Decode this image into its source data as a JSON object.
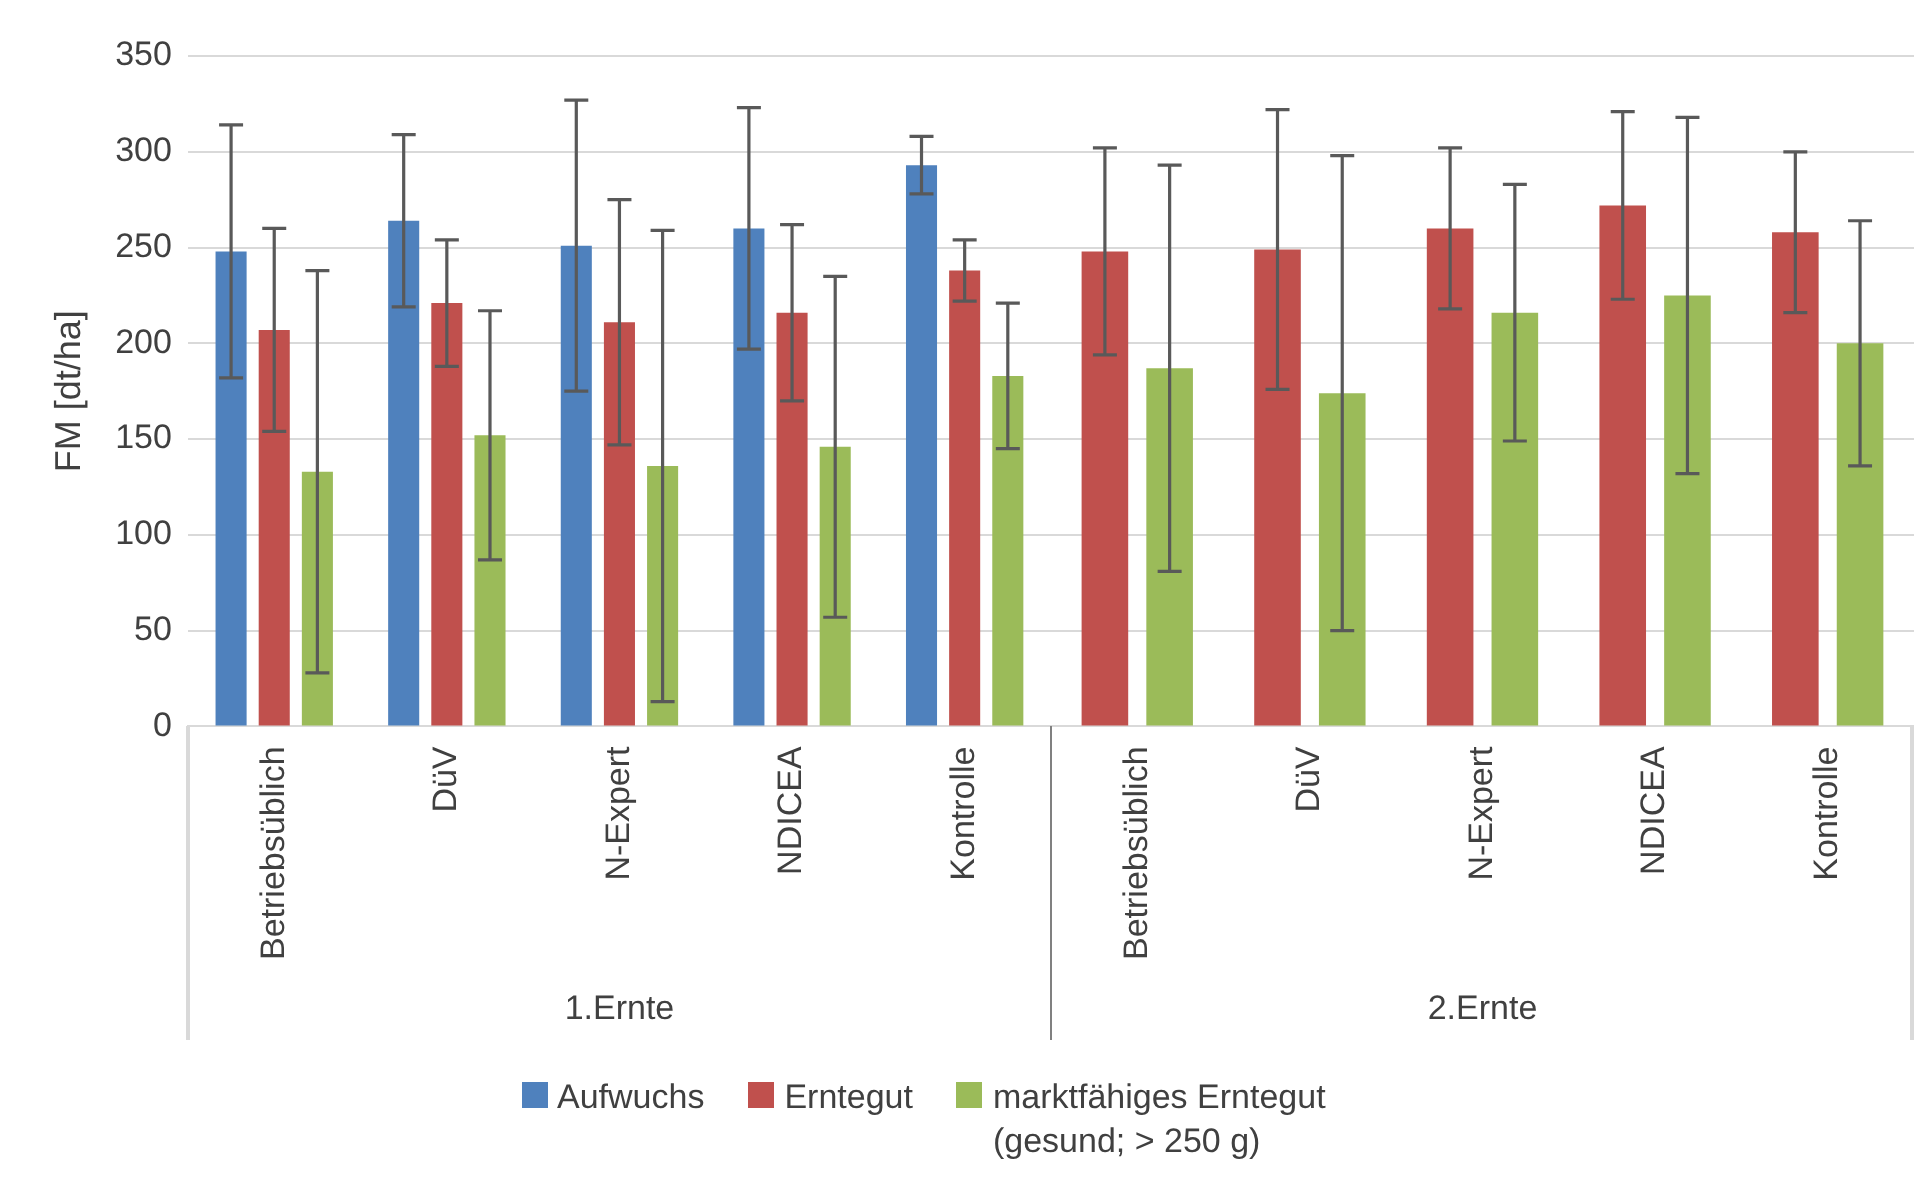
{
  "chart_data": {
    "type": "bar",
    "ylabel": "FM [dt/ha]",
    "categories": [
      "Betriebsüblich",
      "DüV",
      "N-Expert",
      "NDICEA",
      "Kontrolle",
      "Betriebsüblich",
      "DüV",
      "N-Expert",
      "NDICEA",
      "Kontrolle"
    ],
    "series": [
      {
        "name": "Aufwuchs",
        "color": "#4f81bd",
        "values": [
          248,
          264,
          251,
          260,
          293,
          null,
          null,
          null,
          null,
          null
        ],
        "errors": [
          66,
          45,
          76,
          63,
          15,
          null,
          null,
          null,
          null,
          null
        ]
      },
      {
        "name": "Erntegut",
        "color": "#c0504d",
        "values": [
          207,
          221,
          211,
          216,
          238,
          248,
          249,
          260,
          272,
          258
        ],
        "errors": [
          53,
          33,
          64,
          46,
          16,
          54,
          73,
          42,
          49,
          42
        ]
      },
      {
        "name": "marktfähiges Erntegut (gesund; > 250 g)",
        "color": "#9bbb59",
        "values": [
          133,
          152,
          136,
          146,
          183,
          187,
          174,
          216,
          225,
          200
        ],
        "errors": [
          105,
          65,
          123,
          89,
          38,
          106,
          124,
          67,
          93,
          64
        ]
      }
    ],
    "ylim": [
      0,
      350
    ],
    "yticks": [
      0,
      50,
      100,
      150,
      200,
      250,
      300,
      350
    ],
    "grid": "y",
    "legend": "bottom",
    "annotations": [
      "1.Ernte",
      "2.Ernte"
    ]
  }
}
